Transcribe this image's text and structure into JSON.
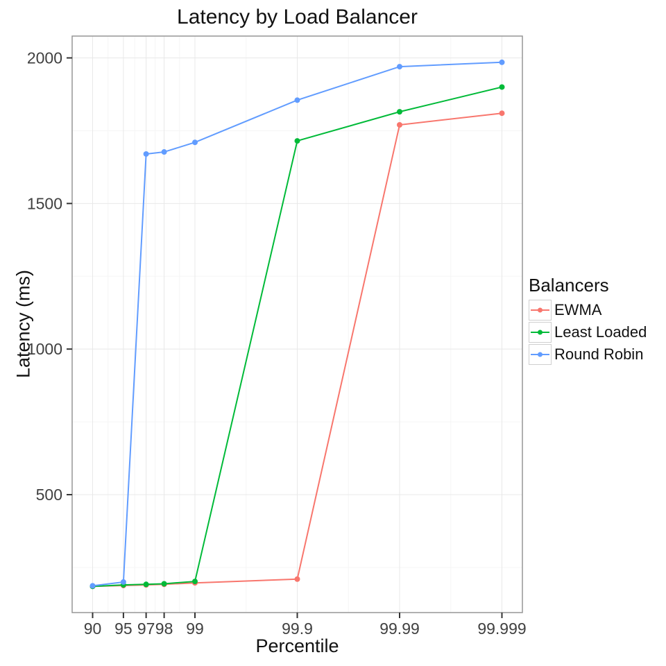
{
  "figure": {
    "title": "Latency by Load Balancer",
    "x_axis": {
      "label": "Percentile",
      "tick_labels": [
        "90",
        "95",
        "97",
        "98",
        "99",
        "99.9",
        "99.99",
        "99.999"
      ]
    },
    "y_axis": {
      "label": "Latency (ms)",
      "tick_labels": [
        "500",
        "1000",
        "1500",
        "2000"
      ]
    },
    "legend": {
      "title": "Balancers",
      "entries": [
        "EWMA",
        "Least Loaded",
        "Round Robin"
      ]
    }
  },
  "chart_data": {
    "type": "line",
    "title": "Latency by Load Balancer",
    "xlabel": "Percentile",
    "ylabel": "Latency (ms)",
    "x_scale": "log10(100/(100-percentile))",
    "x": [
      90,
      95,
      97,
      98,
      99,
      99.9,
      99.99,
      99.999
    ],
    "x_ticks": [
      90,
      95,
      97,
      98,
      99,
      99.9,
      99.99,
      99.999
    ],
    "y_ticks": [
      500,
      1000,
      1500,
      2000
    ],
    "ylim": [
      95,
      2075
    ],
    "grid": "major+minor",
    "legend_title": "Balancers",
    "legend_position": "right",
    "series": [
      {
        "name": "EWMA",
        "color": "#F8766D",
        "values": [
          185,
          188,
          190,
          192,
          197,
          210,
          1770,
          1810
        ]
      },
      {
        "name": "Least Loaded",
        "color": "#00BA38",
        "values": [
          185,
          190,
          192,
          194,
          202,
          1715,
          1815,
          1900
        ]
      },
      {
        "name": "Round Robin",
        "color": "#619CFF",
        "values": [
          187,
          200,
          1670,
          1677,
          1710,
          1855,
          1970,
          1985
        ]
      }
    ],
    "colors": {
      "grid_major": "#e8e8e8",
      "grid_minor": "#f5f5f5",
      "panel_border": "#969696",
      "tick_mark": "#333333",
      "tick_label": "#404040",
      "text": "#111111",
      "background": "#ffffff"
    }
  }
}
